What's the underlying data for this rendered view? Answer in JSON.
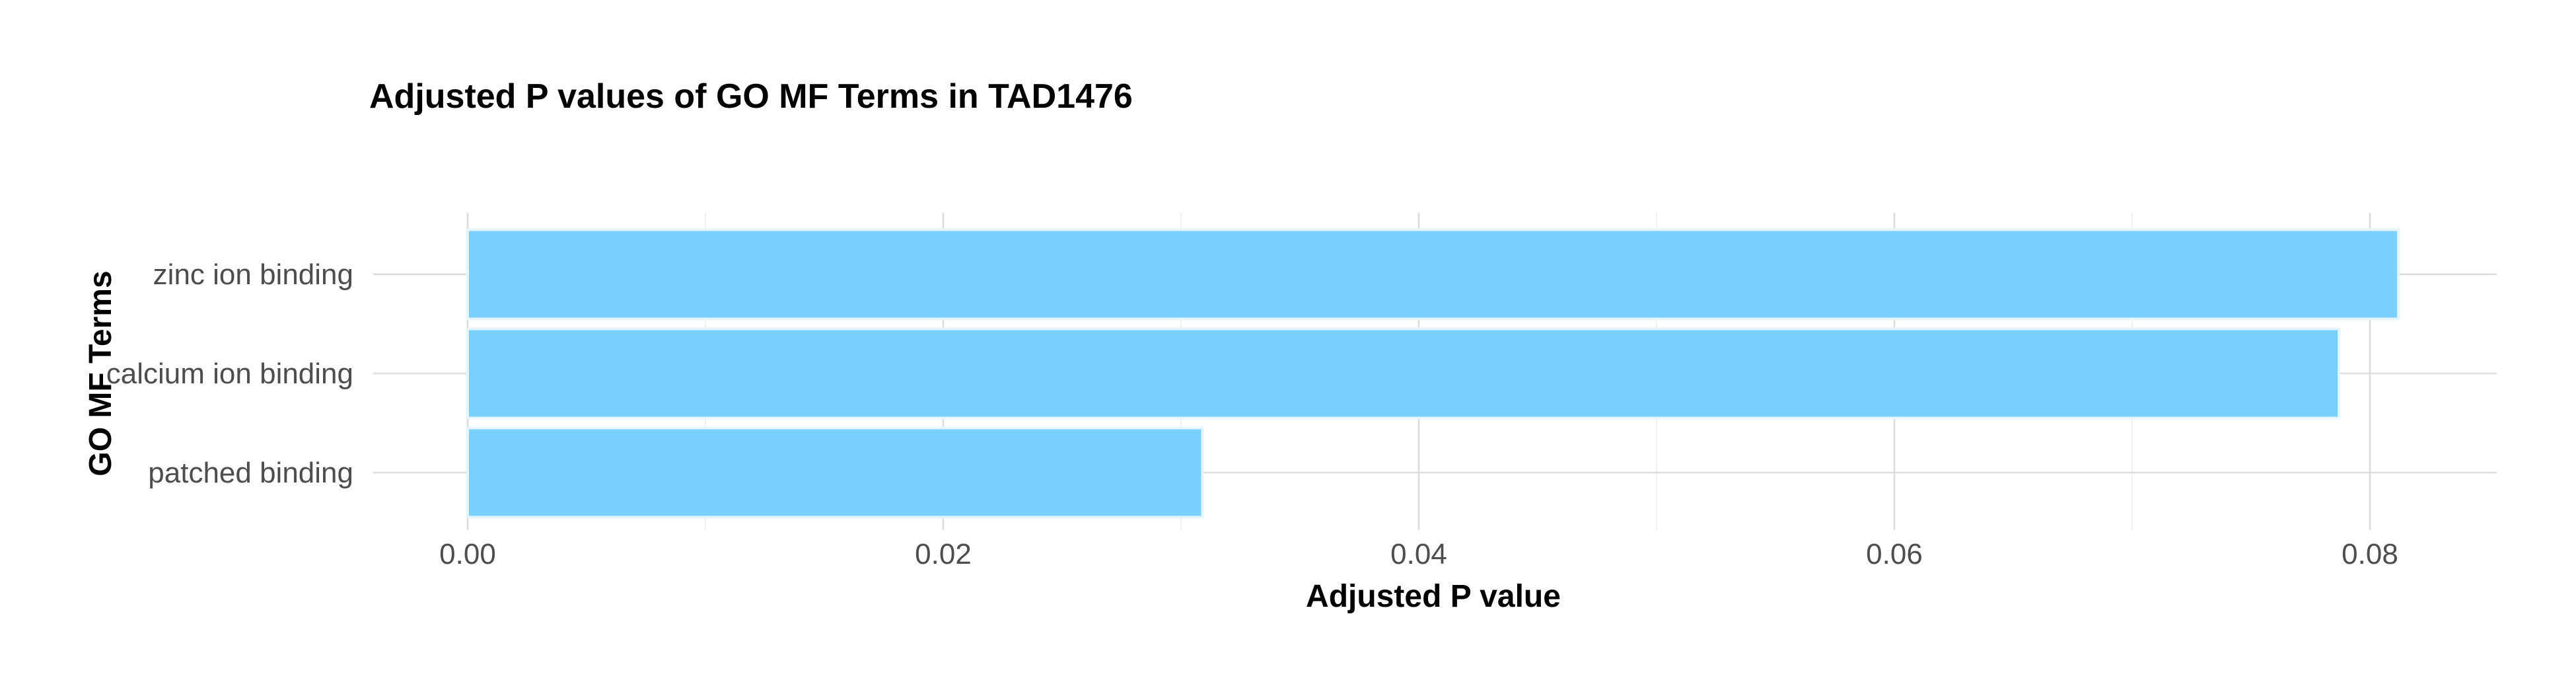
{
  "chart_data": {
    "type": "bar",
    "orientation": "horizontal",
    "title": "Adjusted P values of GO MF Terms in TAD1476",
    "xlabel": "Adjusted P value",
    "ylabel": "GO MF Terms",
    "categories": [
      "zinc ion binding",
      "calcium ion binding",
      "patched binding"
    ],
    "values": [
      0.0812,
      0.0787,
      0.0309
    ],
    "xlim": [
      0,
      0.085
    ],
    "x_ticks": [
      "0.00",
      "0.02",
      "0.04",
      "0.06",
      "0.08"
    ],
    "bar_color": "#74cefc",
    "grid": true,
    "legend": "none"
  }
}
